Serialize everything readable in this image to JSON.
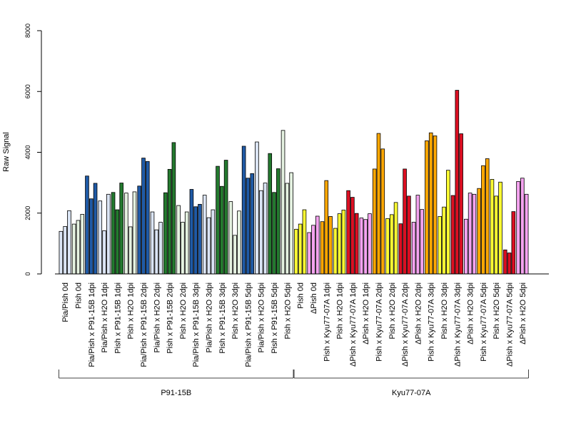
{
  "chart_data": {
    "type": "bar",
    "ylabel": "Raw Signal",
    "ylim": [
      0,
      8000
    ],
    "yticks": [
      0,
      2000,
      4000,
      6000,
      8000
    ],
    "grid": false,
    "categories": [
      "Pia/Pish 0d",
      "Pish 0d",
      "Pia/Pish x P91-15B 1dpi",
      "Pia/Pish x H2O 1dpi",
      "Pish x P91-15B 1dpi",
      "Pish x H2O 1dpi",
      "Pia/Pish x P91-15B 2dpi",
      "Pia/Pish x H2O 2dpi",
      "Pish x P91-15B 2dpi",
      "Pish x H2O 2dpi",
      "Pia/Pish x P91-15B 3dpi",
      "Pia/Pish x H2O 3dpi",
      "Pish x P91-15B 3dpi",
      "Pish x H2O 3dpi",
      "Pia/Pish x P91-15B 5dpi",
      "Pia/Pish x H2O 5dpi",
      "Pish x P91-15B 5dpi",
      "Pish x H2O 5dpi",
      "Pish 0d",
      "ΔPish 0d",
      "Pish x Kyu77-07A 1dpi",
      "Pish x H2O 1dpi",
      "ΔPish x Kyu77-07A 1dpi",
      "ΔPish x H2O 1dpi",
      "Pish x Kyu77-07A 2dpi",
      "Pish x H2O 2dpi",
      "ΔPish x Kyu77-07A 2dpi",
      "ΔPish x H2O 2dpi",
      "Pish x Kyu77-07A 3dpi",
      "Pish x H2O 3dpi",
      "ΔPish x Kyu77-07A 3dpi",
      "ΔPish x H2O 3dpi",
      "Pish x Kyu77-07A 5dpi",
      "Pish x H2O 5dpi",
      "ΔPish x Kyu77-07A 5dpi",
      "ΔPish x H2O 5dpi"
    ],
    "replicates_per_category": 3,
    "values": [
      [
        1400,
        1560,
        2080
      ],
      [
        1640,
        1760,
        1960
      ],
      [
        3220,
        2470,
        2980
      ],
      [
        2400,
        1420,
        2620
      ],
      [
        2680,
        2110,
        2990
      ],
      [
        2660,
        1550,
        2700
      ],
      [
        2890,
        3810,
        3700
      ],
      [
        2040,
        1450,
        1700
      ],
      [
        2670,
        3440,
        4320
      ],
      [
        2250,
        1700,
        2040
      ],
      [
        2780,
        2210,
        2290
      ],
      [
        2590,
        1850,
        2110
      ],
      [
        3540,
        2880,
        3740
      ],
      [
        2380,
        1270,
        2070
      ],
      [
        4200,
        3150,
        3300
      ],
      [
        4340,
        2740,
        2990
      ],
      [
        3960,
        2680,
        3460
      ],
      [
        4720,
        2980,
        3330
      ],
      [
        1470,
        1640,
        2110
      ],
      [
        1360,
        1600,
        1900
      ],
      [
        1720,
        3070,
        1890
      ],
      [
        1500,
        1980,
        2100
      ],
      [
        2740,
        2520,
        1990
      ],
      [
        1840,
        1790,
        1980
      ],
      [
        3450,
        4620,
        4110
      ],
      [
        1820,
        1950,
        2350
      ],
      [
        1650,
        3450,
        2560
      ],
      [
        1700,
        2590,
        2120
      ],
      [
        4380,
        4640,
        4540
      ],
      [
        1890,
        2200,
        3410
      ],
      [
        2580,
        6040,
        4610
      ],
      [
        1800,
        2660,
        2620
      ],
      [
        2810,
        3560,
        3790
      ],
      [
        3110,
        2560,
        3020
      ],
      [
        790,
        690,
        2050
      ],
      [
        3040,
        3150,
        2620
      ]
    ],
    "colors": [
      "#dbe5f5",
      "#e5f2e1",
      "#1f5aa6",
      "#dbe5f5",
      "#247a2f",
      "#e5f2e1",
      "#1f5aa6",
      "#dbe5f5",
      "#247a2f",
      "#e5f2e1",
      "#1f5aa6",
      "#dbe5f5",
      "#247a2f",
      "#e5f2e1",
      "#1f5aa6",
      "#dbe5f5",
      "#247a2f",
      "#e5f2e1",
      "#ffff33",
      "#f5a3f0",
      "#ffa800",
      "#ffff33",
      "#dc0f22",
      "#f5a3f0",
      "#ffa800",
      "#ffff33",
      "#dc0f22",
      "#f5a3f0",
      "#ffa800",
      "#ffff33",
      "#dc0f22",
      "#f5a3f0",
      "#ffa800",
      "#ffff33",
      "#dc0f22",
      "#f5a3f0"
    ],
    "groups": [
      {
        "label": "P91-15B",
        "from": 0,
        "to": 17
      },
      {
        "label": "Kyu77-07A",
        "from": 18,
        "to": 35
      }
    ]
  }
}
